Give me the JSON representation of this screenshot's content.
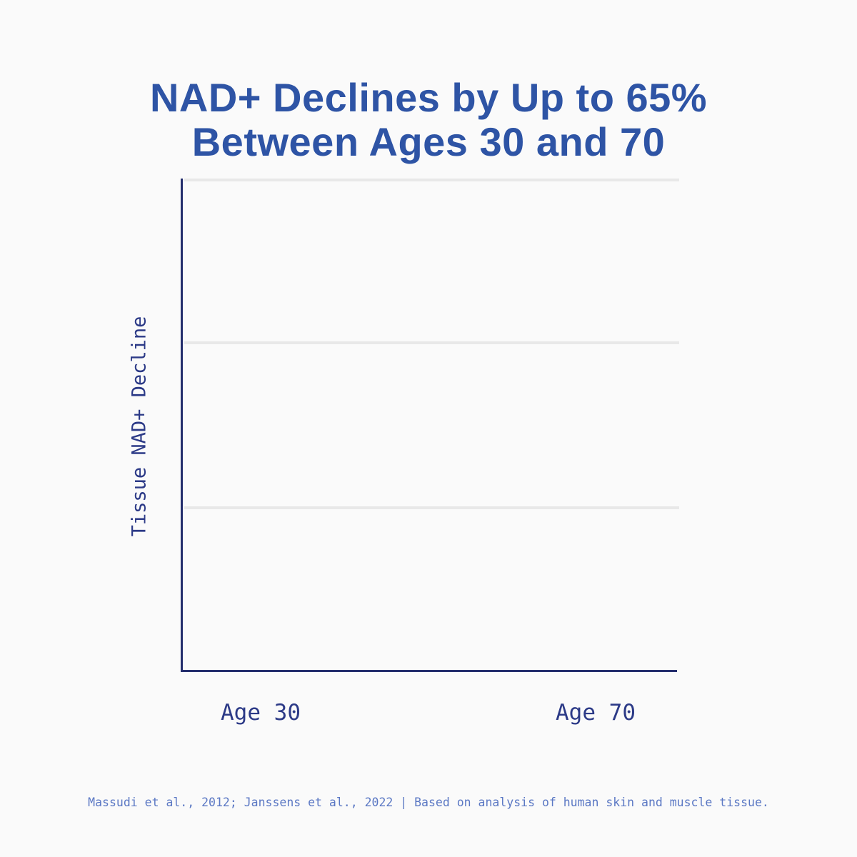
{
  "page": {
    "background_color": "#fafafa"
  },
  "title": {
    "line1": "NAD+ Declines by Up to 65%",
    "line2": "Between Ages 30 and 70",
    "color": "#2e54a5"
  },
  "chart": {
    "ylabel": "Tissue NAD+ Decline",
    "x_labels": [
      "Age 30",
      "Age 70"
    ],
    "axis_color": "#242e6d",
    "gridline_color": "#e8e8e8",
    "label_color": "#2c3a87"
  },
  "footer": {
    "text": "Massudi et al., 2012; Janssens et al., 2022 | Based on analysis of human skin and muscle tissue.",
    "color": "#5b78c4"
  },
  "chart_data": {
    "type": "bar",
    "title": "NAD+ Declines by Up to 65% Between Ages 30 and 70",
    "categories": [
      "Age 30",
      "Age 70"
    ],
    "values": [],
    "xlabel": "",
    "ylabel": "Tissue NAD+ Decline",
    "y_tick_labels": [],
    "grid": "3 horizontal light-gray gridlines at 0%, 33.3%, 66.7% of plot height; no vertical gridlines",
    "legend": "none",
    "note": "plot area is empty in this frame - no bars or data marks are rendered; only axes, gridlines and labels are visible"
  }
}
